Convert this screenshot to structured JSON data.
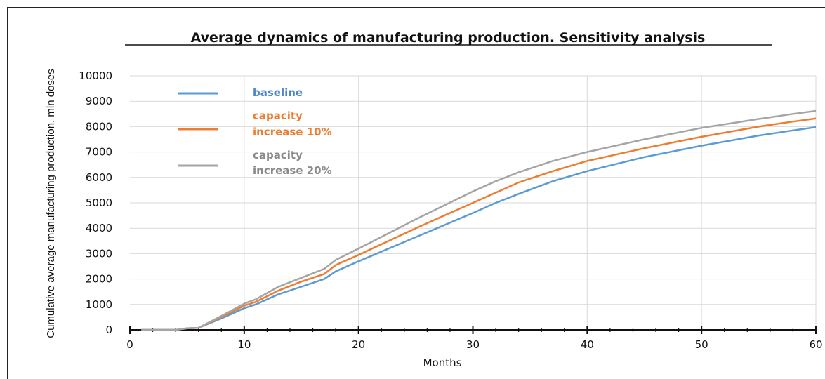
{
  "chart_data": {
    "type": "line",
    "title": "Average dynamics of manufacturing production. Sensitivity analysis",
    "xlabel": "Months",
    "ylabel": "Cumulative average manufacturing production, mln doses",
    "xlim": [
      0,
      60
    ],
    "ylim": [
      0,
      10000
    ],
    "x_ticks": [
      "0",
      "10",
      "20",
      "30",
      "40",
      "50",
      "60"
    ],
    "y_ticks": [
      "0",
      "1000",
      "2000",
      "3000",
      "4000",
      "5000",
      "6000",
      "7000",
      "8000",
      "9000",
      "10000"
    ],
    "grid": true,
    "legend_position": "top-left",
    "x": [
      1,
      4,
      5,
      6,
      8,
      10,
      11,
      13,
      15,
      17,
      18,
      20,
      25,
      30,
      32,
      34,
      37,
      40,
      45,
      50,
      55,
      58,
      60
    ],
    "series": [
      {
        "name": "baseline",
        "color": "#5b9bd5",
        "values": [
          0,
          0,
          60,
          80,
          450,
          850,
          1000,
          1400,
          1700,
          2000,
          2300,
          2700,
          3650,
          4600,
          5000,
          5350,
          5850,
          6250,
          6800,
          7250,
          7650,
          7850,
          7980
        ]
      },
      {
        "name": "capacity increase 10%",
        "color": "#ed7d31",
        "values": [
          0,
          0,
          60,
          80,
          500,
          950,
          1100,
          1550,
          1900,
          2200,
          2550,
          2950,
          4000,
          5000,
          5400,
          5800,
          6250,
          6650,
          7150,
          7600,
          8000,
          8200,
          8320
        ]
      },
      {
        "name": "capacity increase 20%",
        "color": "#a5a5a5",
        "values": [
          0,
          0,
          60,
          80,
          550,
          1030,
          1200,
          1700,
          2050,
          2400,
          2750,
          3200,
          4350,
          5450,
          5850,
          6200,
          6650,
          7000,
          7500,
          7950,
          8300,
          8500,
          8620
        ]
      }
    ],
    "legend": [
      {
        "label_line1": "baseline",
        "label_line2": "",
        "color": "#4a86c8"
      },
      {
        "label_line1": "capacity",
        "label_line2": "increase 10%",
        "color": "#ed7d31"
      },
      {
        "label_line1": "capacity",
        "label_line2": "increase 20%",
        "color": "#8a8a8a"
      }
    ]
  }
}
